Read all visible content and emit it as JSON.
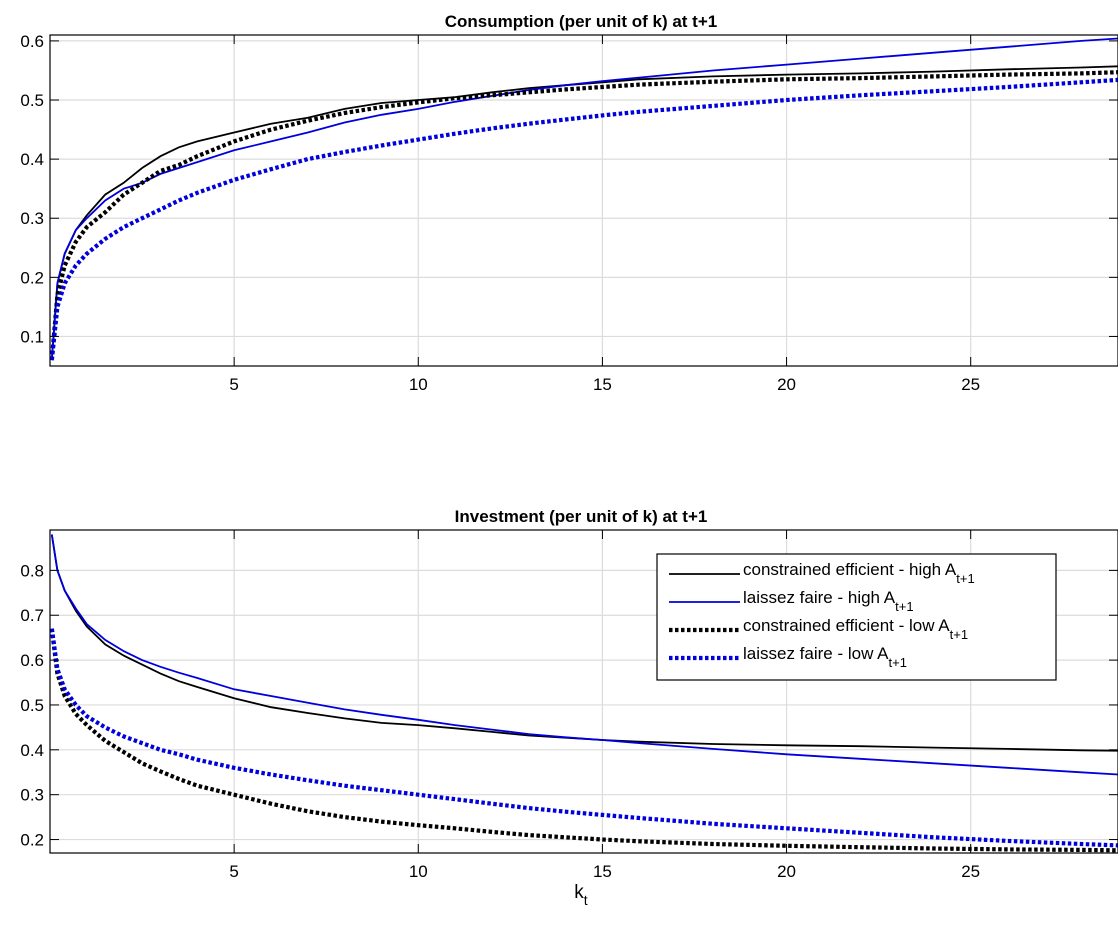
{
  "chart_data": [
    {
      "type": "line",
      "title": "Consumption (per unit of k) at t+1",
      "xlabel": "",
      "ylabel": "",
      "xlim": [
        0,
        29
      ],
      "ylim": [
        0.05,
        0.61
      ],
      "xticks": [
        5,
        10,
        15,
        20,
        25
      ],
      "yticks": [
        0.1,
        0.2,
        0.3,
        0.4,
        0.5,
        0.6
      ],
      "grid": true,
      "series": [
        {
          "key": "ce_high",
          "color": "#000000",
          "style": "solid",
          "x": [
            0.05,
            0.2,
            0.4,
            0.7,
            1,
            1.5,
            2,
            2.5,
            3,
            3.5,
            4,
            5,
            6,
            7,
            8,
            9,
            10,
            11,
            12,
            13,
            14,
            15,
            16,
            18,
            20,
            22,
            24,
            26,
            28,
            29
          ],
          "y": [
            0.06,
            0.19,
            0.24,
            0.28,
            0.305,
            0.34,
            0.36,
            0.385,
            0.405,
            0.42,
            0.43,
            0.445,
            0.46,
            0.47,
            0.485,
            0.495,
            0.5,
            0.505,
            0.513,
            0.52,
            0.525,
            0.53,
            0.535,
            0.54,
            0.543,
            0.545,
            0.548,
            0.552,
            0.555,
            0.557
          ]
        },
        {
          "key": "lf_high",
          "color": "#0000dd",
          "style": "solid",
          "x": [
            0.05,
            0.2,
            0.4,
            0.7,
            1,
            1.5,
            2,
            2.5,
            3,
            3.5,
            4,
            5,
            6,
            7,
            8,
            9,
            10,
            11,
            12,
            13,
            14,
            15,
            16,
            18,
            20,
            22,
            24,
            26,
            28,
            29
          ],
          "y": [
            0.06,
            0.19,
            0.24,
            0.28,
            0.3,
            0.33,
            0.35,
            0.36,
            0.375,
            0.385,
            0.395,
            0.415,
            0.43,
            0.445,
            0.462,
            0.475,
            0.485,
            0.497,
            0.507,
            0.517,
            0.525,
            0.532,
            0.538,
            0.55,
            0.56,
            0.57,
            0.58,
            0.59,
            0.6,
            0.604
          ]
        },
        {
          "key": "ce_low",
          "color": "#000000",
          "style": "dotted",
          "x": [
            0.05,
            0.2,
            0.4,
            0.7,
            1,
            1.5,
            2,
            2.5,
            3,
            3.5,
            4,
            5,
            6,
            7,
            8,
            9,
            10,
            11,
            12,
            13,
            14,
            15,
            16,
            18,
            20,
            22,
            24,
            26,
            28,
            29
          ],
          "y": [
            0.06,
            0.17,
            0.22,
            0.26,
            0.285,
            0.31,
            0.34,
            0.36,
            0.38,
            0.39,
            0.405,
            0.43,
            0.45,
            0.465,
            0.478,
            0.488,
            0.496,
            0.503,
            0.508,
            0.513,
            0.518,
            0.522,
            0.526,
            0.531,
            0.535,
            0.537,
            0.54,
            0.543,
            0.545,
            0.547
          ]
        },
        {
          "key": "lf_low",
          "color": "#0000dd",
          "style": "dotted",
          "x": [
            0.05,
            0.2,
            0.4,
            0.7,
            1,
            1.5,
            2,
            2.5,
            3,
            3.5,
            4,
            5,
            6,
            7,
            8,
            9,
            10,
            11,
            12,
            13,
            14,
            15,
            16,
            18,
            20,
            22,
            24,
            26,
            28,
            29
          ],
          "y": [
            0.06,
            0.15,
            0.19,
            0.22,
            0.24,
            0.265,
            0.285,
            0.3,
            0.315,
            0.33,
            0.343,
            0.365,
            0.383,
            0.4,
            0.412,
            0.423,
            0.433,
            0.443,
            0.452,
            0.46,
            0.467,
            0.474,
            0.48,
            0.49,
            0.5,
            0.508,
            0.515,
            0.522,
            0.53,
            0.534
          ]
        }
      ]
    },
    {
      "type": "line",
      "title": "Investment (per unit of k) at t+1",
      "xlabel": "k",
      "xlabel_sub": "t",
      "ylabel": "",
      "xlim": [
        0,
        29
      ],
      "ylim": [
        0.17,
        0.89
      ],
      "xticks": [
        5,
        10,
        15,
        20,
        25
      ],
      "yticks": [
        0.2,
        0.3,
        0.4,
        0.5,
        0.6,
        0.7,
        0.8
      ],
      "grid": true,
      "legend_position": "top-right",
      "series": [
        {
          "key": "ce_high",
          "name": "constrained efficient - high A",
          "name_sub": "t+1",
          "color": "#000000",
          "style": "solid",
          "x": [
            0.05,
            0.2,
            0.4,
            0.7,
            1,
            1.5,
            2,
            2.5,
            3,
            3.5,
            4,
            5,
            6,
            7,
            8,
            9,
            10,
            11,
            12,
            13,
            14,
            15,
            16,
            18,
            20,
            22,
            24,
            26,
            28,
            29
          ],
          "y": [
            0.88,
            0.8,
            0.755,
            0.71,
            0.675,
            0.635,
            0.61,
            0.59,
            0.57,
            0.553,
            0.54,
            0.515,
            0.495,
            0.482,
            0.47,
            0.46,
            0.455,
            0.448,
            0.44,
            0.432,
            0.427,
            0.422,
            0.418,
            0.413,
            0.41,
            0.408,
            0.405,
            0.402,
            0.399,
            0.398
          ]
        },
        {
          "key": "lf_high",
          "name": "laissez faire - high A",
          "name_sub": "t+1",
          "color": "#0000dd",
          "style": "solid",
          "x": [
            0.05,
            0.2,
            0.4,
            0.7,
            1,
            1.5,
            2,
            2.5,
            3,
            3.5,
            4,
            5,
            6,
            7,
            8,
            9,
            10,
            11,
            12,
            13,
            14,
            15,
            16,
            18,
            20,
            22,
            24,
            26,
            28,
            29
          ],
          "y": [
            0.88,
            0.8,
            0.755,
            0.715,
            0.68,
            0.645,
            0.62,
            0.6,
            0.585,
            0.572,
            0.56,
            0.535,
            0.52,
            0.505,
            0.49,
            0.478,
            0.467,
            0.455,
            0.445,
            0.435,
            0.428,
            0.422,
            0.415,
            0.402,
            0.39,
            0.38,
            0.37,
            0.36,
            0.35,
            0.345
          ]
        },
        {
          "key": "ce_low",
          "name": "constrained efficient - low A",
          "name_sub": "t+1",
          "color": "#000000",
          "style": "dotted",
          "x": [
            0.05,
            0.2,
            0.4,
            0.7,
            1,
            1.5,
            2,
            2.5,
            3,
            3.5,
            4,
            5,
            6,
            7,
            8,
            9,
            10,
            11,
            12,
            13,
            14,
            15,
            16,
            18,
            20,
            22,
            24,
            26,
            28,
            29
          ],
          "y": [
            0.67,
            0.57,
            0.52,
            0.48,
            0.455,
            0.42,
            0.395,
            0.37,
            0.352,
            0.335,
            0.32,
            0.3,
            0.28,
            0.263,
            0.25,
            0.24,
            0.232,
            0.225,
            0.217,
            0.21,
            0.205,
            0.2,
            0.196,
            0.19,
            0.186,
            0.183,
            0.18,
            0.178,
            0.177,
            0.176
          ]
        },
        {
          "key": "lf_low",
          "name": "laissez faire - low A",
          "name_sub": "t+1",
          "color": "#0000dd",
          "style": "dotted",
          "x": [
            0.05,
            0.2,
            0.4,
            0.7,
            1,
            1.5,
            2,
            2.5,
            3,
            3.5,
            4,
            5,
            6,
            7,
            8,
            9,
            10,
            11,
            12,
            13,
            14,
            15,
            16,
            18,
            20,
            22,
            24,
            26,
            28,
            29
          ],
          "y": [
            0.67,
            0.58,
            0.535,
            0.5,
            0.475,
            0.45,
            0.43,
            0.415,
            0.4,
            0.39,
            0.378,
            0.36,
            0.345,
            0.332,
            0.32,
            0.31,
            0.3,
            0.29,
            0.28,
            0.27,
            0.262,
            0.255,
            0.248,
            0.235,
            0.225,
            0.215,
            0.205,
            0.197,
            0.19,
            0.187
          ]
        }
      ]
    }
  ]
}
